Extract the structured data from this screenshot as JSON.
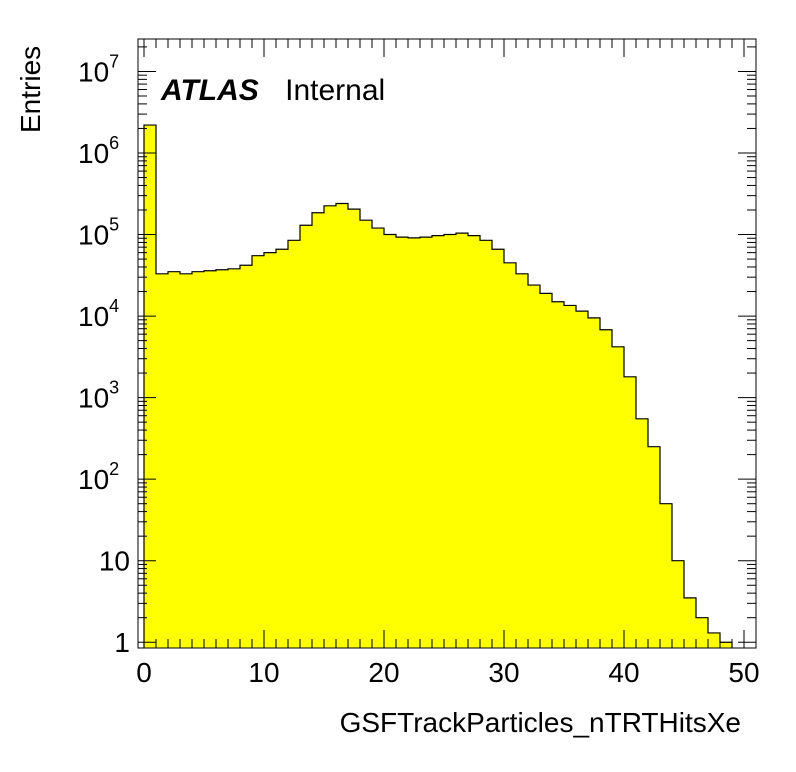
{
  "chart_data": {
    "type": "bar",
    "style": "histogram",
    "xlabel": "GSFTrackParticles_nTRTHitsXe",
    "ylabel": "Entries",
    "xlim": [
      -0.5,
      51
    ],
    "ylim": [
      0.85,
      25000000
    ],
    "yscale": "log",
    "x_ticks": [
      "0",
      "10",
      "20",
      "30",
      "40",
      "50"
    ],
    "y_ticks": [
      {
        "value": 1,
        "base": "1",
        "exp": ""
      },
      {
        "value": 10,
        "base": "10",
        "exp": ""
      },
      {
        "value": 100,
        "base": "10",
        "exp": "2"
      },
      {
        "value": 1000,
        "base": "10",
        "exp": "3"
      },
      {
        "value": 10000,
        "base": "10",
        "exp": "4"
      },
      {
        "value": 100000,
        "base": "10",
        "exp": "5"
      },
      {
        "value": 1000000,
        "base": "10",
        "exp": "6"
      },
      {
        "value": 10000000,
        "base": "10",
        "exp": "7"
      }
    ],
    "bin_edges_start": 0,
    "bin_width": 1,
    "values": [
      2200000,
      33000,
      35000,
      33000,
      35000,
      36000,
      37000,
      38000,
      42000,
      55000,
      60000,
      66000,
      85000,
      130000,
      185000,
      225000,
      240000,
      205000,
      150000,
      120000,
      100000,
      93000,
      91000,
      93000,
      97000,
      100000,
      104000,
      97000,
      85000,
      66000,
      45000,
      33000,
      24000,
      19000,
      15000,
      13500,
      11500,
      9500,
      6800,
      4200,
      1800,
      550,
      250,
      50,
      10,
      3.5,
      2,
      1.3,
      1
    ],
    "fill_color": "#ffff00",
    "line_color": "#000000",
    "grid": false,
    "legend": "none",
    "annotation": {
      "bold": "ATLAS",
      "normal": "Internal"
    }
  }
}
